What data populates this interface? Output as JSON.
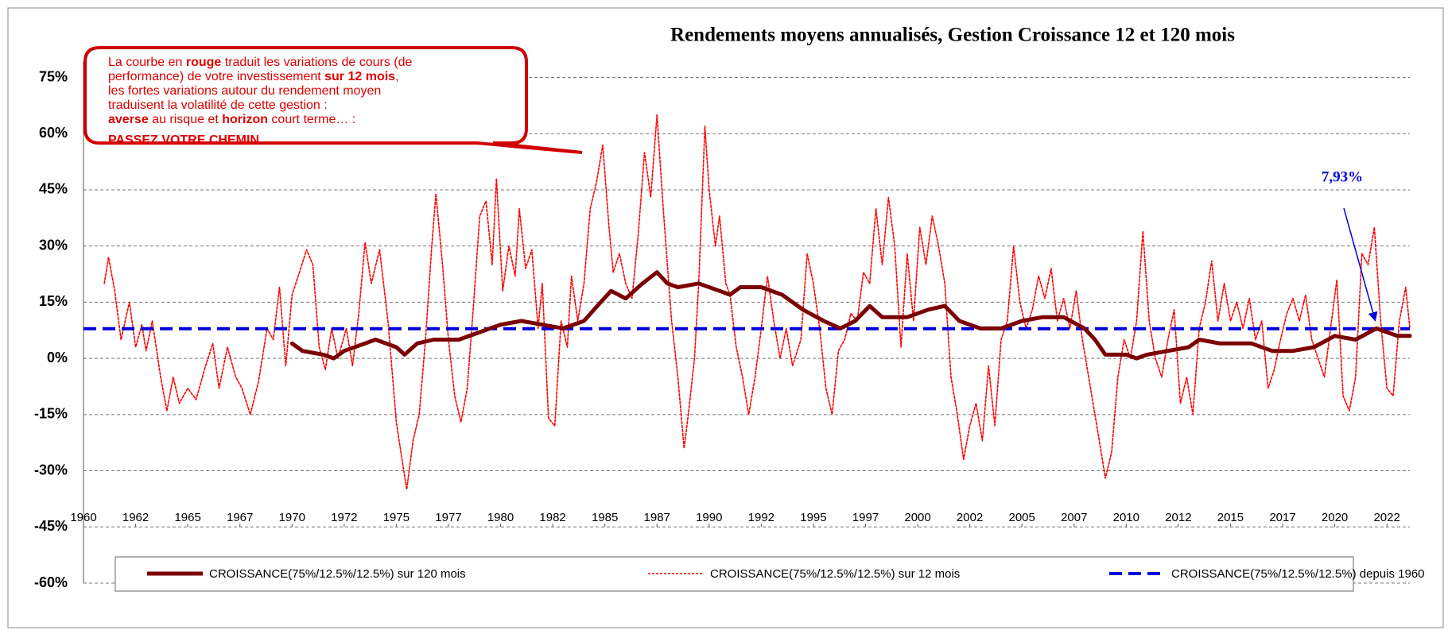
{
  "chart_data": {
    "type": "line",
    "title": "Rendements moyens annualisés, Gestion Croissance 12 et 120 mois",
    "xlim": [
      1960,
      2023.6
    ],
    "xticks": [
      1960,
      {
        "value": 1962.5,
        "label": "1962"
      },
      1965,
      {
        "value": 1967.5,
        "label": "1967"
      },
      1970,
      {
        "value": 1972.5,
        "label": "1972"
      },
      1975,
      {
        "value": 1977.5,
        "label": "1977"
      },
      1980,
      {
        "value": 1982.5,
        "label": "1982"
      },
      1985,
      {
        "value": 1987.5,
        "label": "1987"
      },
      1990,
      {
        "value": 1992.5,
        "label": "1992"
      },
      1995,
      {
        "value": 1997.5,
        "label": "1997"
      },
      2000,
      {
        "value": 2002.5,
        "label": "2002"
      },
      2005,
      {
        "value": 2007.5,
        "label": "2007"
      },
      2010,
      {
        "value": 2012.5,
        "label": "2012"
      },
      2015,
      {
        "value": 2017.5,
        "label": "2017"
      },
      2020,
      {
        "value": 2022.5,
        "label": "2022"
      }
    ],
    "ylim": [
      -60,
      75
    ],
    "yticks": [
      {
        "value": 75,
        "label": "75%"
      },
      {
        "value": 60,
        "label": "60%"
      },
      {
        "value": 45,
        "label": "45%"
      },
      {
        "value": 30,
        "label": "30%"
      },
      {
        "value": 15,
        "label": "15%"
      },
      {
        "value": 0,
        "label": "0%"
      },
      {
        "value": -15,
        "label": "-15%"
      },
      {
        "value": -30,
        "label": "-30%"
      },
      {
        "value": -45,
        "label": "-45%"
      },
      {
        "value": -60,
        "label": "-60%"
      }
    ],
    "grid": true,
    "series": [
      {
        "name": "CROISSANCE(75%/12.5%/12.5%) sur 120 mois",
        "color": "#7b0000",
        "style": "solid",
        "x": [
          1970.0,
          1970.5,
          1971.5,
          1972.0,
          1972.5,
          1973.5,
          1974.0,
          1975.0,
          1975.4,
          1976.0,
          1976.8,
          1978.0,
          1979.0,
          1980.0,
          1981.0,
          1982.0,
          1983.0,
          1984.0,
          1984.8,
          1985.3,
          1986.0,
          1986.8,
          1987.5,
          1988.0,
          1988.5,
          1989.5,
          1990.5,
          1991.0,
          1991.5,
          1992.5,
          1993.5,
          1994.5,
          1995.5,
          1996.3,
          1997.0,
          1997.7,
          1998.3,
          1999.5,
          2000.5,
          2001.3,
          2002.0,
          2003.0,
          2004.0,
          2005.0,
          2006.0,
          2007.0,
          2008.0,
          2008.5,
          2009.0,
          2010.0,
          2010.5,
          2011.0,
          2012.0,
          2013.0,
          2013.5,
          2014.5,
          2016.0,
          2017.0,
          2018.0,
          2019.0,
          2020.0,
          2021.0,
          2022.0,
          2022.5,
          2023.0,
          2023.6
        ],
        "values": [
          4,
          2,
          1,
          0,
          2,
          4,
          5,
          3,
          1,
          4,
          5,
          5,
          7,
          9,
          10,
          9,
          8,
          10,
          15,
          18,
          16,
          20,
          23,
          20,
          19,
          20,
          18,
          17,
          19,
          19,
          17,
          13,
          10,
          8,
          10,
          14,
          11,
          11,
          13,
          14,
          10,
          8,
          8,
          10,
          11,
          11,
          8,
          5,
          1,
          1,
          0,
          1,
          2,
          3,
          5,
          4,
          4,
          2,
          2,
          3,
          6,
          5,
          8,
          7,
          6,
          6
        ]
      },
      {
        "name": "CROISSANCE(75%/12.5%/12.5%) sur 12 mois",
        "color": "#ff0000",
        "style": "dotted",
        "x": [
          1961.0,
          1961.2,
          1961.5,
          1961.8,
          1962.2,
          1962.5,
          1962.8,
          1963.0,
          1963.3,
          1963.7,
          1964.0,
          1964.3,
          1964.6,
          1965.0,
          1965.4,
          1965.8,
          1966.2,
          1966.5,
          1966.9,
          1967.3,
          1967.6,
          1968.0,
          1968.4,
          1968.8,
          1969.1,
          1969.4,
          1969.7,
          1970.0,
          1970.3,
          1970.7,
          1971.0,
          1971.3,
          1971.6,
          1971.9,
          1972.2,
          1972.6,
          1972.9,
          1973.2,
          1973.5,
          1973.8,
          1974.2,
          1974.6,
          1975.0,
          1975.3,
          1975.5,
          1975.8,
          1976.1,
          1976.4,
          1976.7,
          1976.9,
          1977.2,
          1977.5,
          1977.8,
          1978.1,
          1978.4,
          1978.7,
          1979.0,
          1979.3,
          1979.6,
          1979.8,
          1980.1,
          1980.4,
          1980.7,
          1980.9,
          1981.2,
          1981.5,
          1981.8,
          1982.0,
          1982.3,
          1982.6,
          1982.9,
          1983.2,
          1983.4,
          1983.7,
          1984.0,
          1984.3,
          1984.6,
          1984.9,
          1985.2,
          1985.4,
          1985.7,
          1986.0,
          1986.3,
          1986.6,
          1986.9,
          1987.2,
          1987.5,
          1987.8,
          1988.0,
          1988.2,
          1988.5,
          1988.8,
          1989.0,
          1989.3,
          1989.5,
          1989.8,
          1990.0,
          1990.3,
          1990.5,
          1990.8,
          1991.0,
          1991.3,
          1991.6,
          1991.9,
          1992.2,
          1992.5,
          1992.8,
          1993.1,
          1993.4,
          1993.7,
          1994.0,
          1994.4,
          1994.7,
          1995.0,
          1995.3,
          1995.6,
          1995.9,
          1996.2,
          1996.5,
          1996.8,
          1997.1,
          1997.4,
          1997.7,
          1998.0,
          1998.3,
          1998.6,
          1998.9,
          1999.2,
          1999.5,
          1999.8,
          2000.1,
          2000.4,
          2000.7,
          2001.0,
          2001.3,
          2001.6,
          2001.9,
          2002.2,
          2002.5,
          2002.8,
          2003.1,
          2003.4,
          2003.7,
          2004.0,
          2004.3,
          2004.6,
          2004.9,
          2005.2,
          2005.5,
          2005.8,
          2006.1,
          2006.4,
          2006.7,
          2007.0,
          2007.3,
          2007.6,
          2007.9,
          2008.2,
          2008.5,
          2008.8,
          2009.0,
          2009.3,
          2009.6,
          2009.9,
          2010.2,
          2010.5,
          2010.8,
          2011.1,
          2011.4,
          2011.7,
          2012.0,
          2012.3,
          2012.6,
          2012.9,
          2013.2,
          2013.5,
          2013.8,
          2014.1,
          2014.4,
          2014.7,
          2015.0,
          2015.3,
          2015.6,
          2015.9,
          2016.2,
          2016.5,
          2016.8,
          2017.1,
          2017.4,
          2017.7,
          2018.0,
          2018.3,
          2018.6,
          2018.9,
          2019.2,
          2019.5,
          2019.8,
          2020.1,
          2020.4,
          2020.7,
          2021.0,
          2021.3,
          2021.6,
          2021.9,
          2022.2,
          2022.5,
          2022.8,
          2023.1,
          2023.4,
          2023.6
        ],
        "values": [
          20,
          27,
          18,
          5,
          15,
          3,
          9,
          2,
          10,
          -5,
          -14,
          -5,
          -12,
          -8,
          -11,
          -3,
          4,
          -8,
          3,
          -5,
          -8,
          -15,
          -6,
          8,
          5,
          19,
          -2,
          17,
          22,
          29,
          25,
          3,
          -3,
          8,
          0,
          8,
          -2,
          12,
          31,
          20,
          29,
          10,
          -17,
          -28,
          -35,
          -22,
          -15,
          5,
          30,
          44,
          26,
          5,
          -10,
          -17,
          -8,
          14,
          38,
          42,
          25,
          48,
          18,
          30,
          22,
          40,
          24,
          29,
          8,
          20,
          -16,
          -18,
          10,
          3,
          22,
          10,
          20,
          40,
          47,
          57,
          35,
          23,
          28,
          20,
          16,
          33,
          55,
          43,
          65,
          40,
          25,
          10,
          -5,
          -24,
          -15,
          0,
          20,
          62,
          45,
          30,
          38,
          20,
          17,
          3,
          -5,
          -15,
          -5,
          8,
          22,
          10,
          0,
          8,
          -2,
          5,
          28,
          20,
          8,
          -8,
          -15,
          2,
          5,
          12,
          10,
          23,
          20,
          40,
          25,
          43,
          30,
          3,
          28,
          10,
          35,
          25,
          38,
          30,
          20,
          -5,
          -15,
          -27,
          -18,
          -12,
          -22,
          -2,
          -18,
          5,
          10,
          30,
          15,
          8,
          13,
          22,
          16,
          24,
          10,
          16,
          8,
          18,
          5,
          -5,
          -15,
          -25,
          -32,
          -25,
          -5,
          5,
          0,
          10,
          34,
          10,
          0,
          -5,
          5,
          13,
          -12,
          -5,
          -15,
          8,
          15,
          26,
          10,
          20,
          10,
          15,
          8,
          16,
          5,
          10,
          -8,
          -3,
          5,
          12,
          16,
          10,
          17,
          5,
          0,
          -5,
          8,
          21,
          -10,
          -14,
          -5,
          28,
          25,
          35,
          10,
          -8,
          -10,
          10,
          19,
          8
        ]
      },
      {
        "name": "CROISSANCE(75%/12.5%/12.5%) depuis 1960",
        "color": "#0000dd",
        "style": "dashed",
        "value": 7.93
      }
    ],
    "annotation": {
      "label": "7,93%",
      "color": "#0000dd"
    },
    "callout": {
      "color": "#e00000",
      "lines": [
        [
          {
            "text": "La courbe en ",
            "bold": false
          },
          {
            "text": "rouge",
            "bold": true
          },
          {
            "text": " traduit les variations de cours (de",
            "bold": false
          }
        ],
        [
          {
            "text": "performance) de votre investissement ",
            "bold": false
          },
          {
            "text": "sur 12 mois",
            "bold": true
          },
          {
            "text": ",",
            "bold": false
          }
        ],
        [
          {
            "text": "les fortes variations autour du rendement moyen",
            "bold": false
          }
        ],
        [
          {
            "text": "traduisent la volatilité de cette gestion :",
            "bold": false
          }
        ],
        [
          {
            "text": "averse",
            "bold": true
          },
          {
            "text": " au risque et ",
            "bold": false
          },
          {
            "text": "horizon",
            "bold": true
          },
          {
            "text": " court terme… :",
            "bold": false
          }
        ],
        [
          {
            "text": "PASSEZ VOTRE CHEMIN",
            "bold": true
          }
        ]
      ]
    }
  }
}
